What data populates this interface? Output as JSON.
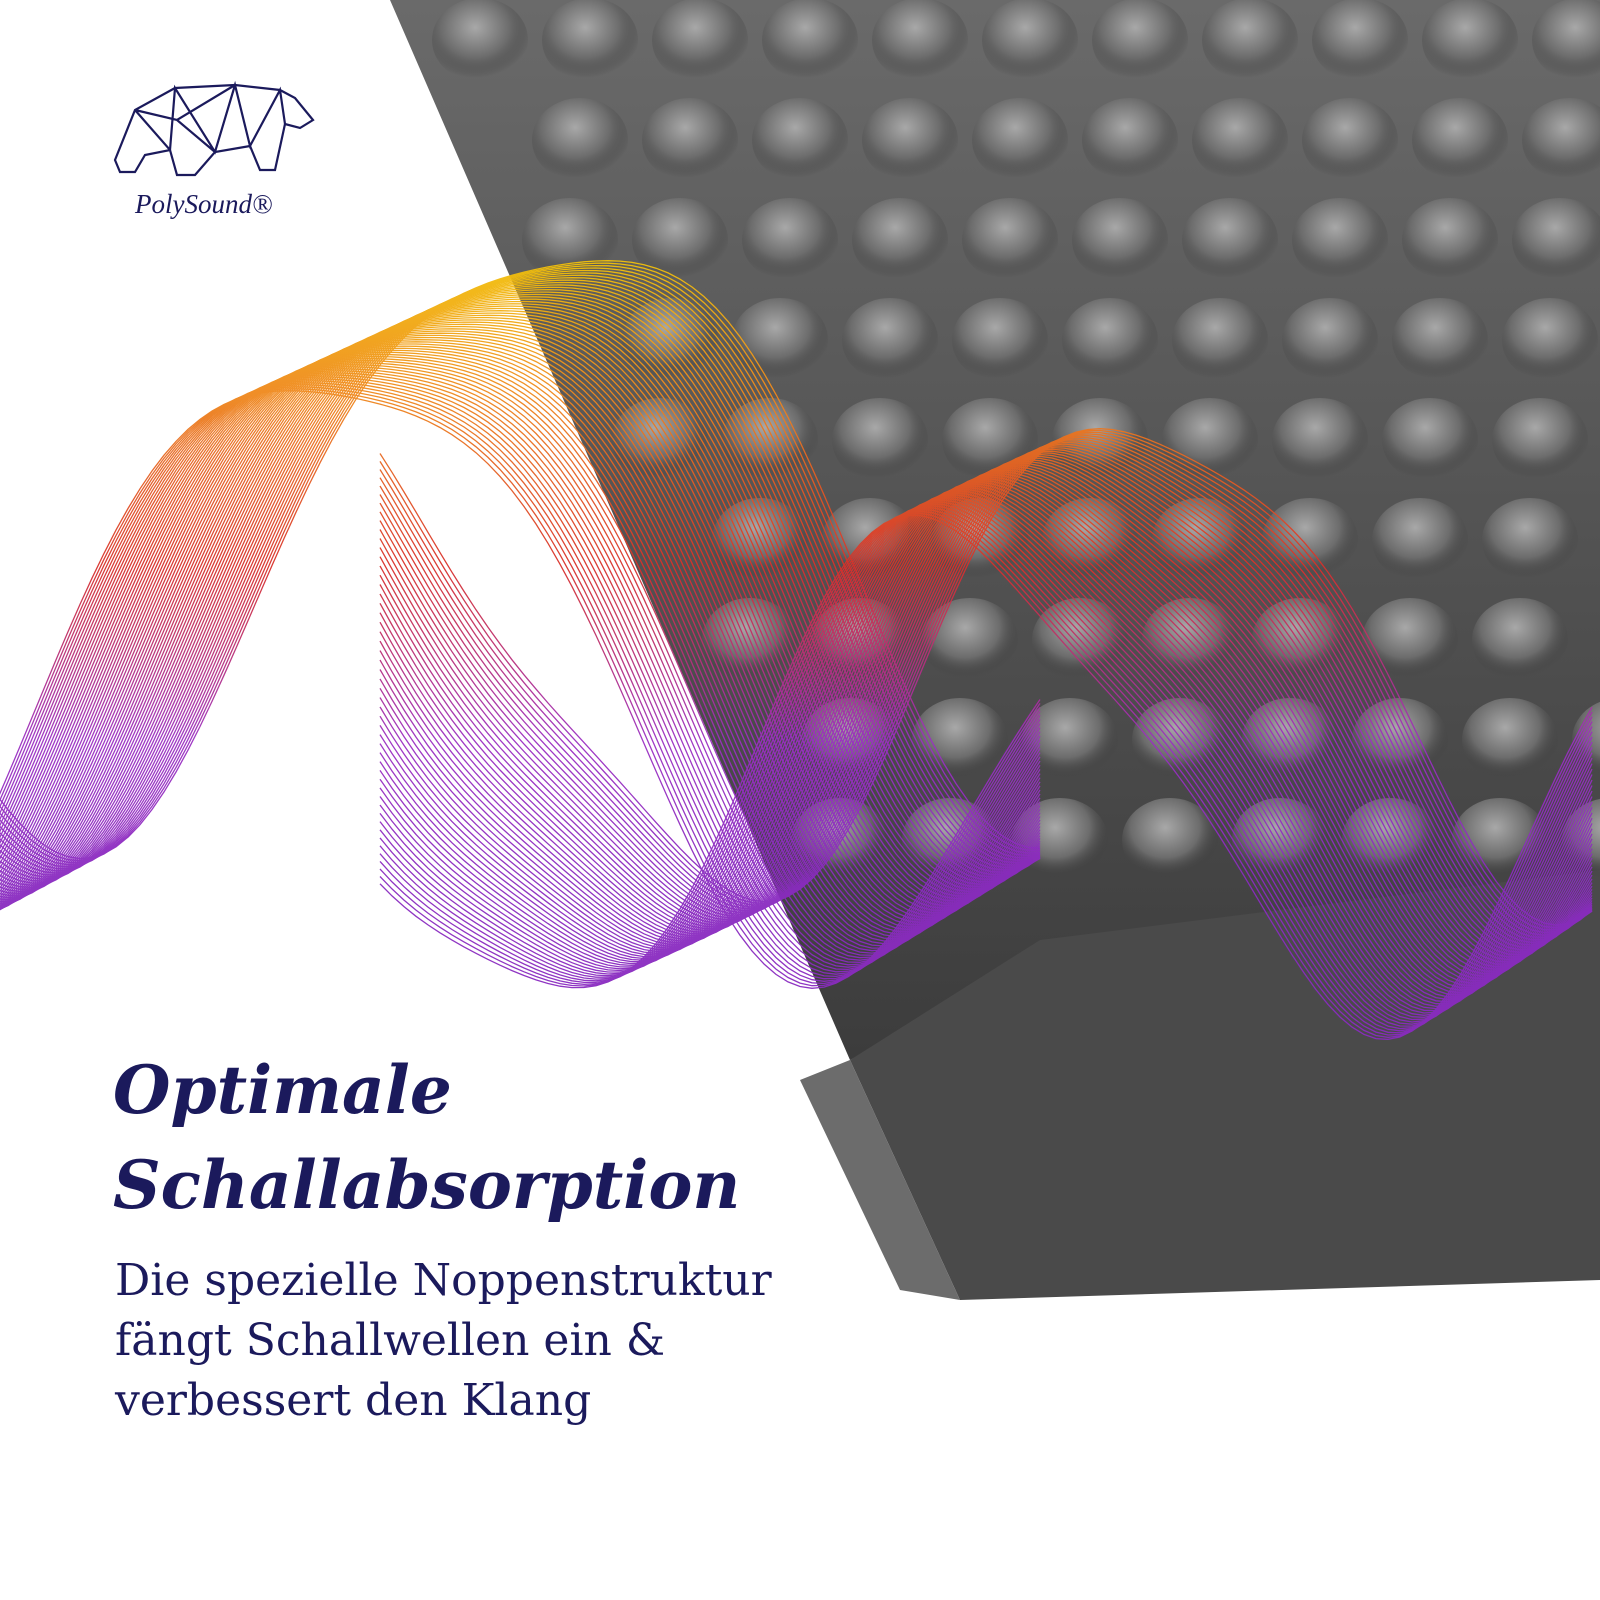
{
  "brand": {
    "name": "PolySound®"
  },
  "headline": {
    "lines": [
      "Optimale",
      "Schallabsorption"
    ]
  },
  "body": {
    "lines": [
      "Die spezielle Noppenstruktur",
      "fängt Schallwellen ein &",
      "verbessert den Klang"
    ]
  }
}
